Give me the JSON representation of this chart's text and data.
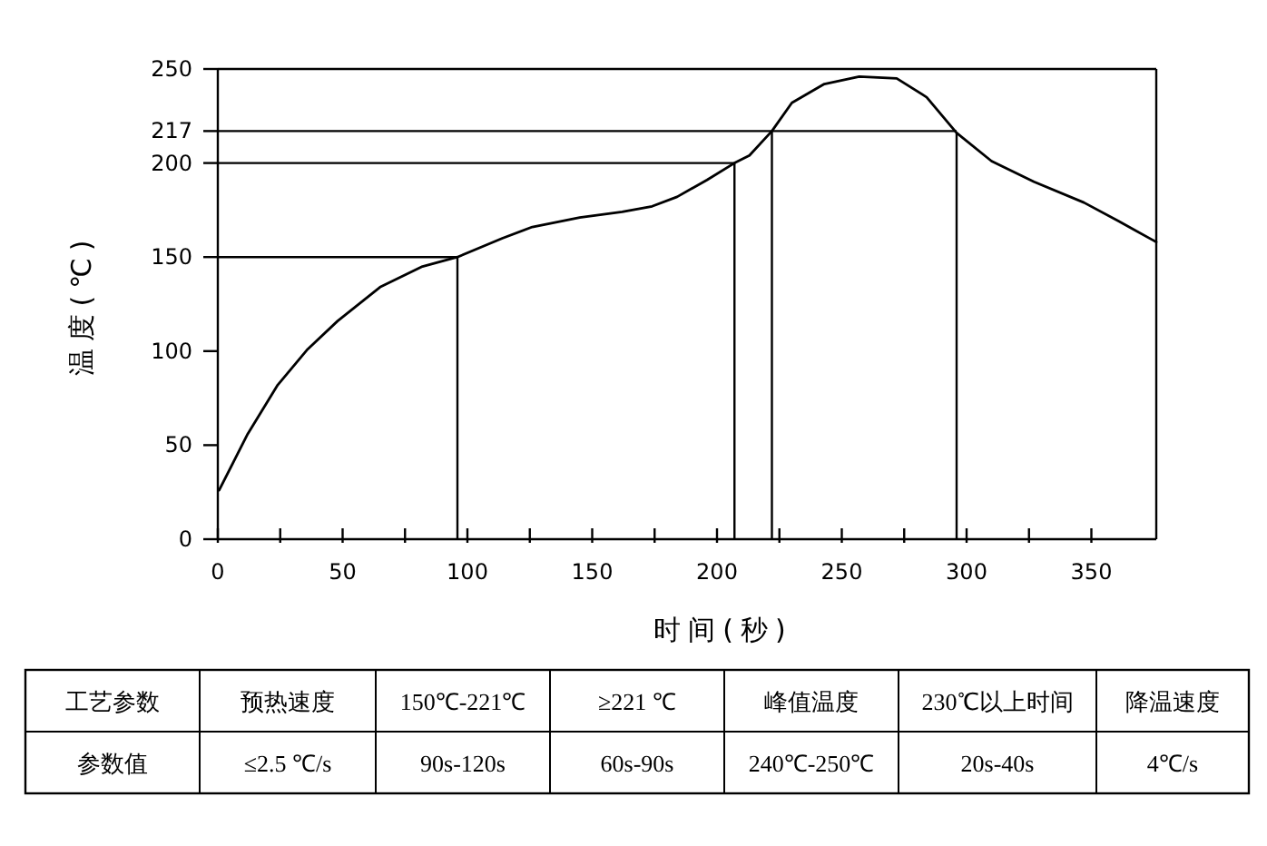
{
  "chart_data": {
    "type": "line",
    "xlabel": "时间(秒)",
    "ylabel": "温度(℃)",
    "color": "#000000",
    "marker": "none",
    "line_style": "solid",
    "x": [
      0.5,
      12,
      24,
      36,
      48,
      65,
      82,
      96,
      114,
      126,
      145,
      162,
      174,
      184,
      196,
      207,
      213,
      222,
      230,
      243,
      257,
      272,
      284,
      296,
      310,
      327,
      347,
      361,
      376
    ],
    "values": [
      26,
      56,
      82,
      101,
      116,
      134,
      145,
      150,
      160,
      166,
      171,
      174,
      177,
      182,
      191,
      200,
      204,
      217,
      232,
      242,
      246,
      245,
      235,
      216,
      201,
      190,
      179,
      169,
      158
    ],
    "xlim": [
      0,
      376
    ],
    "ylim": [
      0,
      250
    ],
    "xticks": [
      0,
      {
        "value": 25,
        "label": null
      },
      50,
      {
        "value": 75,
        "label": null
      },
      100,
      {
        "value": 125,
        "label": null
      },
      150,
      {
        "value": 175,
        "label": null
      },
      200,
      {
        "value": 225,
        "label": null
      },
      250,
      {
        "value": 275,
        "label": null
      },
      300,
      {
        "value": 325,
        "label": null
      },
      350
    ],
    "yticks": [
      0,
      50,
      100,
      150,
      200,
      217,
      250
    ],
    "ref_lines": [
      {
        "axis": "y",
        "value": 150
      },
      {
        "axis": "y",
        "value": 200
      },
      {
        "axis": "y",
        "value": 217
      },
      {
        "axis": "x",
        "value": 96
      },
      {
        "axis": "x",
        "value": 207
      },
      {
        "axis": "x",
        "value": 222
      },
      {
        "axis": "x",
        "value": 296
      }
    ],
    "annotations": [
      "工艺参数",
      "预热速度",
      "150℃-221℃",
      "≥221 ℃",
      "峰值温度",
      "230℃以上时间",
      "降温速度",
      "参数值",
      "≤2.5 ℃/s",
      "90s-120s",
      "60s-90s",
      "240℃-250℃",
      "20s-40s",
      "4℃/s"
    ]
  }
}
